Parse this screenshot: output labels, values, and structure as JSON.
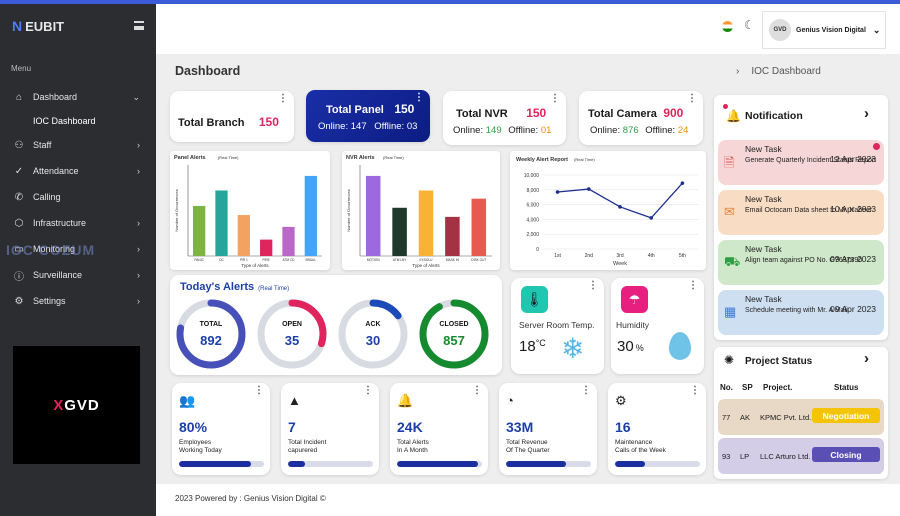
{
  "sidebar": {
    "logo": "EUBIT",
    "logo_prefix": "N",
    "menu_label": "Menu",
    "items": [
      {
        "label": "Dashboard",
        "icon": "home-icon"
      },
      {
        "label": "Staff",
        "icon": "staff-icon"
      },
      {
        "label": "Attendance",
        "icon": "check-icon"
      },
      {
        "label": "Calling",
        "icon": "phone-icon"
      },
      {
        "label": "Infrastructure",
        "icon": "cube-icon"
      },
      {
        "label": "Monitoring",
        "icon": "monitor-icon"
      },
      {
        "label": "Surveillance",
        "icon": "info-icon"
      },
      {
        "label": "Settings",
        "icon": "gear-icon"
      }
    ],
    "sub_item": "IOC Dashboard",
    "brand_box": "GVD",
    "brand_mark": "X",
    "watermark": "IOC COZUM"
  },
  "header": {
    "user_name": "Genius Vision Digital",
    "avatar_text": "GVD"
  },
  "page": {
    "title": "Dashboard",
    "breadcrumb": "IOC Dashboard"
  },
  "stats": {
    "branch": {
      "title": "Total Branch",
      "value": "150"
    },
    "panel": {
      "title": "Total Panel",
      "value": "150",
      "online_label": "Online:",
      "online": "147",
      "offline_label": "Offline:",
      "offline": "03"
    },
    "nvr": {
      "title": "Total NVR",
      "value": "150",
      "online_label": "Online:",
      "online": "149",
      "offline_label": "Offline:",
      "offline": "01"
    },
    "camera": {
      "title": "Total Camera",
      "value": "900",
      "online_label": "Online:",
      "online": "876",
      "offline_label": "Offline:",
      "offline": "24"
    }
  },
  "chart_data": [
    {
      "type": "bar",
      "title": "Panel Alerts",
      "subtitle": "(Real Time)",
      "xlabel": "Type of Alerts",
      "ylabel": "Number of Occurrences",
      "categories": [
        "PANIC",
        "DC",
        "PIR 1",
        "FIRE",
        "ATM CD",
        "BR&UL"
      ],
      "values": [
        55,
        72,
        45,
        18,
        32,
        88
      ],
      "colors": [
        "#7cb342",
        "#26a69a",
        "#f4a261",
        "#e0245e",
        "#ba68c8",
        "#42a5f5"
      ],
      "ylim": [
        0,
        100
      ]
    },
    {
      "type": "bar",
      "title": "NVR Alerts",
      "subtitle": "(Real Time)",
      "xlabel": "Type of Alerts",
      "ylabel": "Number of Occurrences",
      "categories": [
        "MOTION",
        "ATM LBY",
        "EXSOLU",
        "MASK IN",
        "DISK OUT"
      ],
      "values": [
        88,
        53,
        72,
        43,
        63
      ],
      "colors": [
        "#9c6ade",
        "#1f3a2c",
        "#f9b233",
        "#a33344",
        "#e85a4f"
      ],
      "ylim": [
        0,
        100
      ]
    },
    {
      "type": "line",
      "title": "Weekly Alert  Report",
      "subtitle": "(Real Time)",
      "xlabel": "Week",
      "x": [
        "1st",
        "2nd",
        "3rd",
        "4th",
        "5th"
      ],
      "values": [
        7700,
        8100,
        5700,
        4200,
        8900
      ],
      "yticks": [
        "0",
        "2,000",
        "4,000",
        "6,000",
        "8,000",
        "10,000"
      ],
      "ylim": [
        0,
        10000
      ],
      "grid": true
    }
  ],
  "today_alerts": {
    "title": "Today's Alerts",
    "subtitle": "(Real Time)",
    "rings": [
      {
        "label": "TOTAL",
        "value": "892",
        "fraction": 0.78,
        "color": "#4650b8"
      },
      {
        "label": "OPEN",
        "value": "35",
        "fraction": 0.3,
        "color": "#e0245e"
      },
      {
        "label": "ACK",
        "value": "30",
        "fraction": 0.15,
        "color": "#1c4bb8"
      },
      {
        "label": "CLOSED",
        "value": "857",
        "fraction": 0.92,
        "color": "#168a2e"
      }
    ]
  },
  "server_temp": {
    "title": "Server Room Temp.",
    "value": "18",
    "unit": "°C"
  },
  "humidity": {
    "title": "Humidity",
    "value": "30",
    "unit": "%"
  },
  "kpis": [
    {
      "icon": "people-icon",
      "value": "80%",
      "label1": "Employees",
      "label2": "Working Today",
      "progress": 0.85
    },
    {
      "icon": "warning-icon",
      "value": "7",
      "label1": "Total Incident",
      "label2": "capurered",
      "progress": 0.2
    },
    {
      "icon": "bell-icon",
      "value": "24K",
      "label1": "Total Alerts",
      "label2": "In A Month",
      "progress": 0.95
    },
    {
      "icon": "chart-icon",
      "value": "33M",
      "label1": "Total Revenue",
      "label2": "Of The Quarter",
      "progress": 0.7
    },
    {
      "icon": "tools-icon",
      "value": "16",
      "label1": "Maintenance",
      "label2": "Calls of the Week",
      "progress": 0.35
    }
  ],
  "notifications": {
    "title": "Notification",
    "items": [
      {
        "title": "New Task",
        "date": "12 Apr 2023",
        "desc": "Generate Quarterly Incident Status Report",
        "bg": "#f6d6d6",
        "icon": "document-icon"
      },
      {
        "title": "New Task",
        "date": "10 Apr 2023",
        "desc": "Email Octocam Data sheet to Mr. Kabeer",
        "bg": "#f8dcc4",
        "icon": "mail-icon"
      },
      {
        "title": "New Task",
        "date": "09 Apr 2023",
        "desc": "Align team against PO No. G7637390",
        "bg": "#cfe8c9",
        "icon": "truck-icon"
      },
      {
        "title": "New Task",
        "date": "09 Apr 2023",
        "desc": "Schedule meeting with  Mr. A Mali",
        "bg": "#cfdff2",
        "icon": "calendar-icon"
      }
    ]
  },
  "projects": {
    "title": "Project Status",
    "headers": {
      "no": "No.",
      "sp": "SP",
      "project": "Project.",
      "status": "Status"
    },
    "rows": [
      {
        "no": "77",
        "sp": "AK",
        "project": "KPMC Pvt. Ltd.",
        "status": "Negotiation",
        "bg": "#e8d9c6",
        "badge_bg": "#f5c400",
        "badge_fg": "#fff"
      },
      {
        "no": "93",
        "sp": "LP",
        "project": "LLC Arturo Ltd.",
        "status": "Closing",
        "bg": "#d3cde8",
        "badge_bg": "#5a4fb5",
        "badge_fg": "#fff"
      }
    ]
  },
  "footer": {
    "text": "2023 Powered by : Genius Vision Digital ©"
  }
}
